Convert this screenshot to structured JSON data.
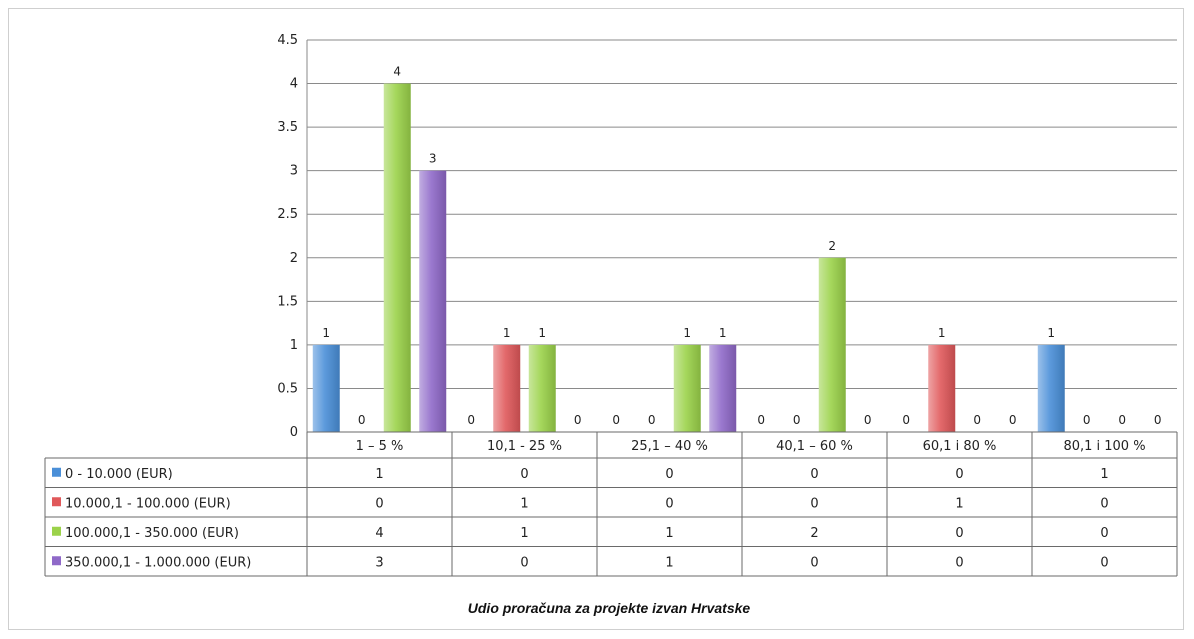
{
  "chart_data": {
    "type": "bar",
    "categories": [
      "1 – 5 %",
      "10,1  - 25 %",
      "25,1 – 40 %",
      "40,1 – 60 %",
      "60,1 i 80 %",
      "80,1 i 100 %"
    ],
    "series": [
      {
        "name": "0 - 10.000  (EUR)",
        "values": [
          1,
          0,
          0,
          0,
          0,
          1
        ],
        "color": "#4a8fd8"
      },
      {
        "name": "10.000,1 - 100.000 (EUR)",
        "values": [
          0,
          1,
          0,
          0,
          1,
          0
        ],
        "color": "#e0585a"
      },
      {
        "name": "100.000,1 - 350.000 (EUR)",
        "values": [
          4,
          1,
          1,
          2,
          0,
          0
        ],
        "color": "#9bd24a"
      },
      {
        "name": "350.000,1 - 1.000.000 (EUR)",
        "values": [
          3,
          0,
          1,
          0,
          0,
          0
        ],
        "color": "#8f69c8"
      }
    ],
    "yticks": [
      "0",
      "0.5",
      "1",
      "1.5",
      "2",
      "2.5",
      "3",
      "3.5",
      "4",
      "4.5"
    ],
    "ylim": [
      0,
      4.5
    ],
    "grid": true,
    "legend": "data-table",
    "title": "",
    "xlabel_parts": {
      "italic": "Udio proračuna",
      "bold": " za projekte izvan Hrvatske"
    },
    "ylabel": ""
  }
}
